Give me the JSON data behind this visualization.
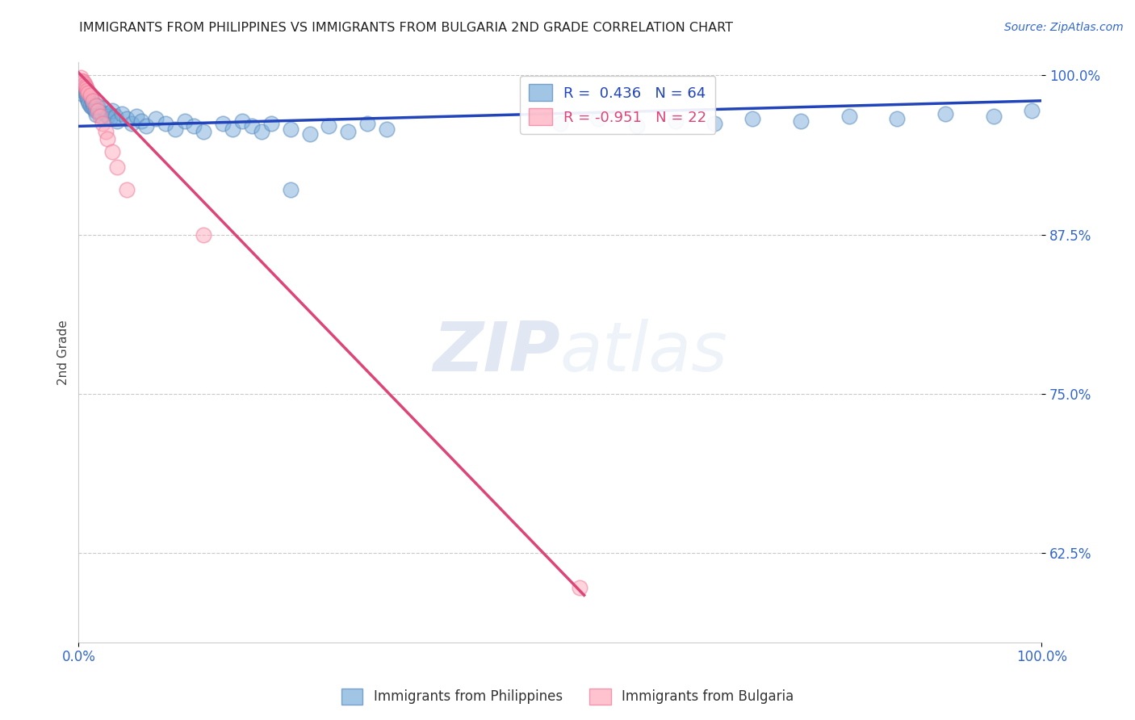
{
  "title": "IMMIGRANTS FROM PHILIPPINES VS IMMIGRANTS FROM BULGARIA 2ND GRADE CORRELATION CHART",
  "source_text": "Source: ZipAtlas.com",
  "ylabel": "2nd Grade",
  "xlim": [
    0.0,
    1.0
  ],
  "ylim": [
    0.555,
    1.01
  ],
  "yticks": [
    0.625,
    0.75,
    0.875,
    1.0
  ],
  "ytick_labels": [
    "62.5%",
    "75.0%",
    "87.5%",
    "100.0%"
  ],
  "xticks": [
    0.0,
    1.0
  ],
  "xtick_labels": [
    "0.0%",
    "100.0%"
  ],
  "philippines_color": "#7aaddb",
  "philippines_edge": "#5588bb",
  "bulgaria_color": "#ffaabb",
  "bulgaria_edge": "#ee7799",
  "blue_line_color": "#2244bb",
  "pink_line_color": "#dd4477",
  "grid_color": "#bbbbbb",
  "background_color": "#ffffff",
  "R_philippines": 0.436,
  "N_philippines": 64,
  "R_bulgaria": -0.951,
  "N_bulgaria": 22,
  "legend_label_philippines": "Immigrants from Philippines",
  "legend_label_bulgaria": "Immigrants from Bulgaria",
  "watermark_zip": "ZIP",
  "watermark_atlas": "atlas",
  "philippines_points": [
    [
      0.002,
      0.99
    ],
    [
      0.003,
      0.988
    ],
    [
      0.004,
      0.992
    ],
    [
      0.005,
      0.985
    ],
    [
      0.006,
      0.99
    ],
    [
      0.007,
      0.987
    ],
    [
      0.008,
      0.984
    ],
    [
      0.009,
      0.982
    ],
    [
      0.01,
      0.98
    ],
    [
      0.011,
      0.978
    ],
    [
      0.012,
      0.976
    ],
    [
      0.013,
      0.982
    ],
    [
      0.014,
      0.975
    ],
    [
      0.015,
      0.978
    ],
    [
      0.016,
      0.974
    ],
    [
      0.017,
      0.972
    ],
    [
      0.018,
      0.969
    ],
    [
      0.02,
      0.976
    ],
    [
      0.022,
      0.971
    ],
    [
      0.024,
      0.968
    ],
    [
      0.026,
      0.974
    ],
    [
      0.028,
      0.97
    ],
    [
      0.03,
      0.968
    ],
    [
      0.032,
      0.966
    ],
    [
      0.035,
      0.972
    ],
    [
      0.038,
      0.968
    ],
    [
      0.04,
      0.964
    ],
    [
      0.045,
      0.97
    ],
    [
      0.05,
      0.966
    ],
    [
      0.055,
      0.962
    ],
    [
      0.06,
      0.968
    ],
    [
      0.065,
      0.964
    ],
    [
      0.07,
      0.96
    ],
    [
      0.08,
      0.966
    ],
    [
      0.09,
      0.962
    ],
    [
      0.1,
      0.958
    ],
    [
      0.11,
      0.964
    ],
    [
      0.12,
      0.96
    ],
    [
      0.13,
      0.956
    ],
    [
      0.15,
      0.962
    ],
    [
      0.16,
      0.958
    ],
    [
      0.17,
      0.964
    ],
    [
      0.18,
      0.96
    ],
    [
      0.19,
      0.956
    ],
    [
      0.2,
      0.962
    ],
    [
      0.22,
      0.958
    ],
    [
      0.24,
      0.954
    ],
    [
      0.26,
      0.96
    ],
    [
      0.28,
      0.956
    ],
    [
      0.3,
      0.962
    ],
    [
      0.32,
      0.958
    ],
    [
      0.22,
      0.91
    ],
    [
      0.5,
      0.962
    ],
    [
      0.54,
      0.966
    ],
    [
      0.58,
      0.96
    ],
    [
      0.62,
      0.964
    ],
    [
      0.66,
      0.962
    ],
    [
      0.7,
      0.966
    ],
    [
      0.75,
      0.964
    ],
    [
      0.8,
      0.968
    ],
    [
      0.85,
      0.966
    ],
    [
      0.9,
      0.97
    ],
    [
      0.95,
      0.968
    ],
    [
      0.99,
      0.972
    ]
  ],
  "bulgaria_points": [
    [
      0.002,
      0.998
    ],
    [
      0.003,
      0.996
    ],
    [
      0.004,
      0.994
    ],
    [
      0.005,
      0.995
    ],
    [
      0.006,
      0.993
    ],
    [
      0.007,
      0.991
    ],
    [
      0.008,
      0.99
    ],
    [
      0.009,
      0.988
    ],
    [
      0.01,
      0.986
    ],
    [
      0.012,
      0.984
    ],
    [
      0.015,
      0.98
    ],
    [
      0.018,
      0.976
    ],
    [
      0.02,
      0.972
    ],
    [
      0.022,
      0.968
    ],
    [
      0.025,
      0.962
    ],
    [
      0.028,
      0.956
    ],
    [
      0.03,
      0.95
    ],
    [
      0.035,
      0.94
    ],
    [
      0.04,
      0.928
    ],
    [
      0.05,
      0.91
    ],
    [
      0.13,
      0.875
    ],
    [
      0.52,
      0.598
    ]
  ],
  "blue_line": [
    [
      0.0,
      0.96
    ],
    [
      1.0,
      0.98
    ]
  ],
  "pink_line": [
    [
      0.0,
      1.002
    ],
    [
      0.525,
      0.592
    ]
  ]
}
